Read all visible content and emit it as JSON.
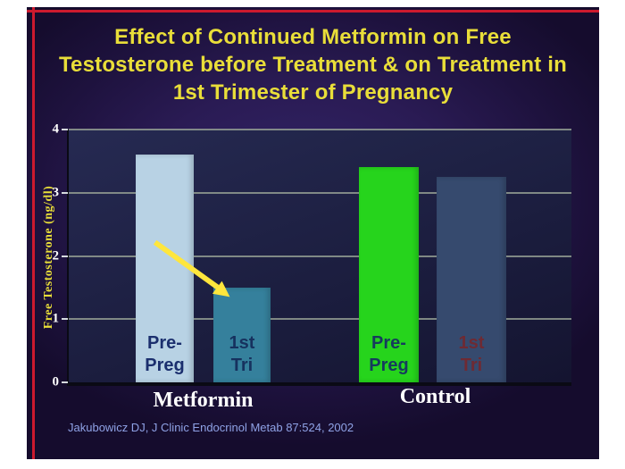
{
  "slide": {
    "title_lines": [
      "Effect of Continued Metformin on Free",
      "Testosterone before Treatment & on Treatment in",
      "1st Trimester of Pregnancy"
    ],
    "citation": "Jakubowicz DJ, J Clinic Endocrinol Metab 87:524, 2002",
    "title_color": "#e9de39",
    "accent_border_color": "#cc1a2e",
    "background_color": "#2a1b54"
  },
  "chart_data": {
    "type": "bar",
    "title": "Effect of Continued Metformin on Free Testosterone before Treatment & on Treatment in 1st Trimester of Pregnancy",
    "xlabel": "",
    "ylabel": "Free Testosterone (ng/dl)",
    "ylim": [
      0,
      4
    ],
    "yticks": [
      0,
      1,
      2,
      3,
      4
    ],
    "grid": true,
    "legend": false,
    "groups": [
      {
        "label": "Metformin",
        "bars": [
          {
            "label": "Pre-\nPreg",
            "value": 3.6,
            "color": "#b8d2e4",
            "label_color": "#1b2f6e"
          },
          {
            "label": "1st\nTri",
            "value": 1.5,
            "color": "#35809c",
            "label_color": "#16315e"
          }
        ]
      },
      {
        "label": "Control",
        "bars": [
          {
            "label": "Pre-\nPreg",
            "value": 3.4,
            "color": "#26d41c",
            "label_color": "#163a5e"
          },
          {
            "label": "1st\nTri",
            "value": 3.25,
            "color": "#364a6e",
            "label_color": "#6e2a33"
          }
        ]
      }
    ],
    "annotations": [
      {
        "type": "arrow",
        "from": "Metformin Pre-Preg",
        "to": "Metformin 1st Tri",
        "color": "#ffe63c"
      }
    ],
    "source": "Jakubowicz DJ, J Clinic Endocrinol Metab 87:524, 2002"
  }
}
